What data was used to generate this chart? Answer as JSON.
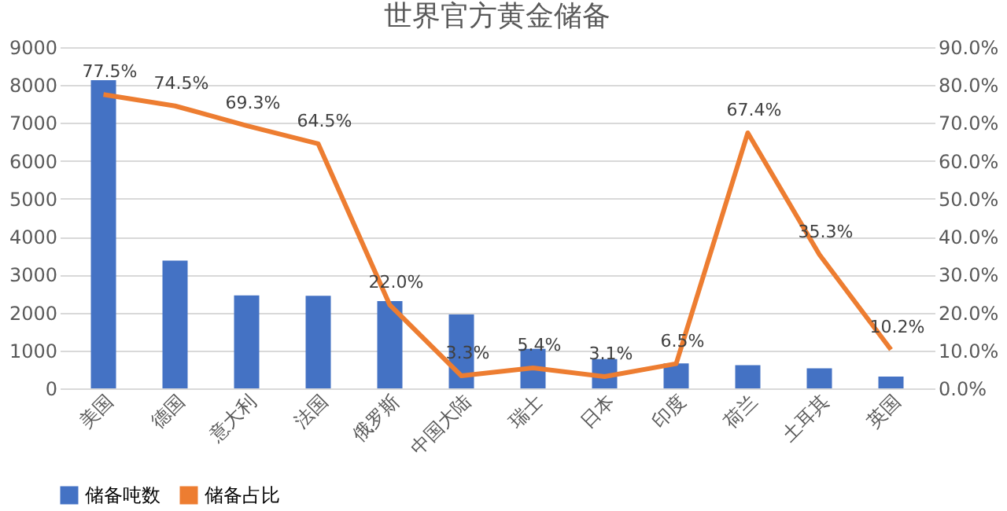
{
  "chart_data": {
    "type": "bar",
    "title": "世界官方黄金储备",
    "categories": [
      "美国",
      "德国",
      "意大利",
      "法国",
      "俄罗斯",
      "中国大陆",
      "瑞士",
      "日本",
      "印度",
      "荷兰",
      "土耳其",
      "英国"
    ],
    "series": [
      {
        "name": "储备吨数",
        "color": "#4472c4",
        "values": [
          8130,
          3370,
          2450,
          2440,
          2300,
          1950,
          1040,
          770,
          660,
          610,
          530,
          310
        ]
      },
      {
        "name": "储备占比",
        "type": "line",
        "axis": "y2",
        "color": "#ed7d31",
        "values": [
          77.5,
          74.5,
          69.3,
          64.5,
          22.0,
          3.3,
          5.4,
          3.1,
          6.5,
          67.4,
          35.3,
          10.2
        ],
        "value_labels": [
          "77.5%",
          "74.5%",
          "69.3%",
          "64.5%",
          "22.0%",
          "3.3%",
          "5.4%",
          "3.1%",
          "6.5%",
          "67.4%",
          "35.3%",
          "10.2%"
        ]
      }
    ],
    "ylim": [
      0,
      9000
    ],
    "yticks": [
      0,
      1000,
      2000,
      3000,
      4000,
      5000,
      6000,
      7000,
      8000,
      9000
    ],
    "y2lim": [
      0,
      90
    ],
    "y2ticks": [
      {
        "value": 0,
        "label": "0.0%"
      },
      {
        "value": 10,
        "label": "10.0%"
      },
      {
        "value": 20,
        "label": "20.0%"
      },
      {
        "value": 30,
        "label": "30.0%"
      },
      {
        "value": 40,
        "label": "40.0%"
      },
      {
        "value": 50,
        "label": "50.0%"
      },
      {
        "value": 60,
        "label": "60.0%"
      },
      {
        "value": 70,
        "label": "70.0%"
      },
      {
        "value": 80,
        "label": "80.0%"
      },
      {
        "value": 90,
        "label": "90.0%"
      }
    ],
    "grid": "y",
    "legend": "bottom",
    "line_style": "solid",
    "marker": "none"
  }
}
